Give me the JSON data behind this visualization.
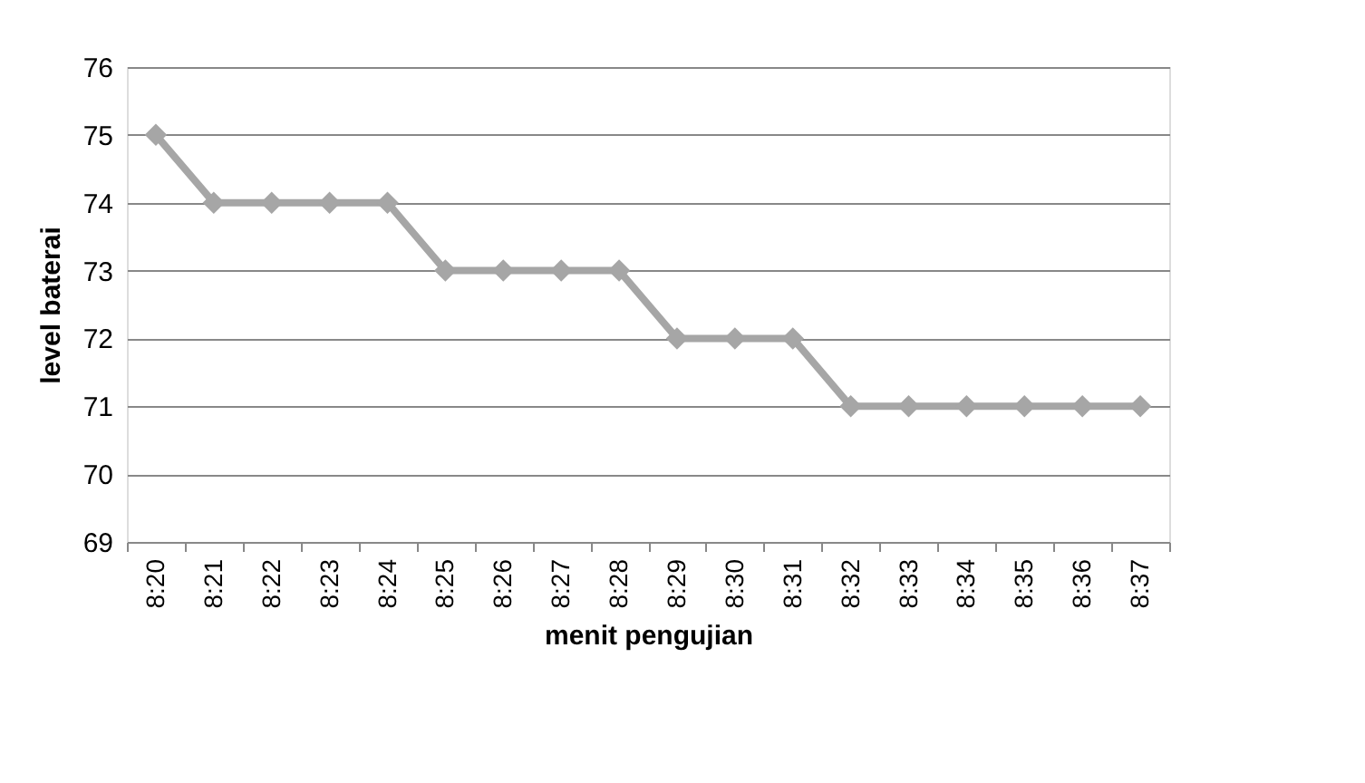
{
  "chart_data": {
    "type": "line",
    "xlabel": "menit pengujian",
    "ylabel": "level baterai",
    "categories": [
      "8:20",
      "8:21",
      "8:22",
      "8:23",
      "8:24",
      "8:25",
      "8:26",
      "8:27",
      "8:28",
      "8:29",
      "8:30",
      "8:31",
      "8:32",
      "8:33",
      "8:34",
      "8:35",
      "8:36",
      "8:37"
    ],
    "series": [
      {
        "color": "#a6a6a6",
        "values": [
          75,
          74,
          74,
          74,
          74,
          73,
          73,
          73,
          73,
          72,
          72,
          72,
          71,
          71,
          71,
          71,
          71,
          71
        ]
      }
    ],
    "ylim": [
      69,
      76
    ],
    "yticks": [
      69,
      70,
      71,
      72,
      73,
      74,
      75,
      76
    ],
    "grid": "y",
    "legend": false,
    "marker": "diamond",
    "line_style": "solid"
  }
}
